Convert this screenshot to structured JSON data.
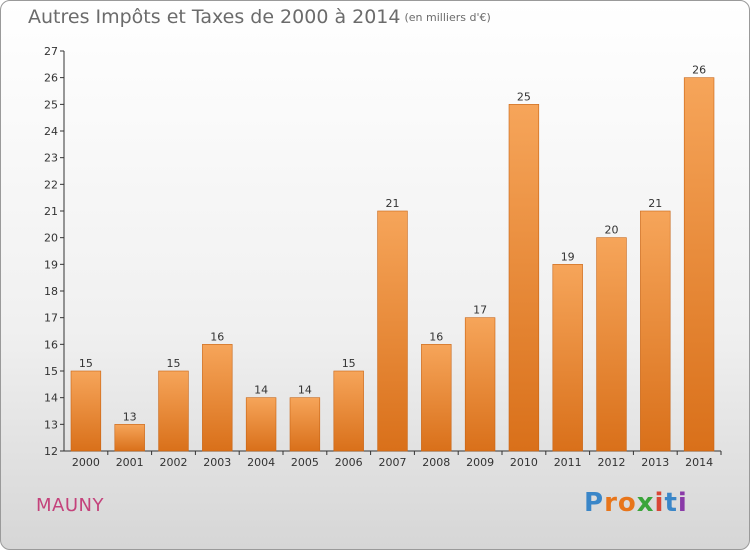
{
  "header": {
    "title": "Autres Impôts et Taxes de 2000 à 2014",
    "subtitle": "(en milliers d'€)"
  },
  "footer": {
    "place": "MAUNY",
    "logo_letters": [
      "P",
      "r",
      "o",
      "x",
      "i",
      "t",
      "i"
    ],
    "logo_colors": [
      "#3a86c8",
      "#e8751a",
      "#e8751a",
      "#3aa53a",
      "#d94636",
      "#3a86c8",
      "#8a3aa8"
    ]
  },
  "colors": {
    "bar_light": "#f6a55a",
    "bar_dark": "#d9701a",
    "axis": "#333333",
    "grid": "#dddddd"
  },
  "chart_data": {
    "type": "bar",
    "title": "Autres Impôts et Taxes de 2000 à 2014",
    "subtitle": "(en milliers d'€)",
    "xlabel": "",
    "ylabel": "",
    "categories": [
      "2000",
      "2001",
      "2002",
      "2003",
      "2004",
      "2005",
      "2006",
      "2007",
      "2008",
      "2009",
      "2010",
      "2011",
      "2012",
      "2013",
      "2014"
    ],
    "values": [
      15,
      13,
      15,
      16,
      14,
      14,
      15,
      21,
      16,
      17,
      25,
      19,
      20,
      21,
      26
    ],
    "ylim": [
      12,
      27
    ],
    "yticks": [
      12,
      13,
      14,
      15,
      16,
      17,
      18,
      19,
      20,
      21,
      22,
      23,
      24,
      25,
      26,
      27
    ],
    "grid": false,
    "data_labels": true
  }
}
